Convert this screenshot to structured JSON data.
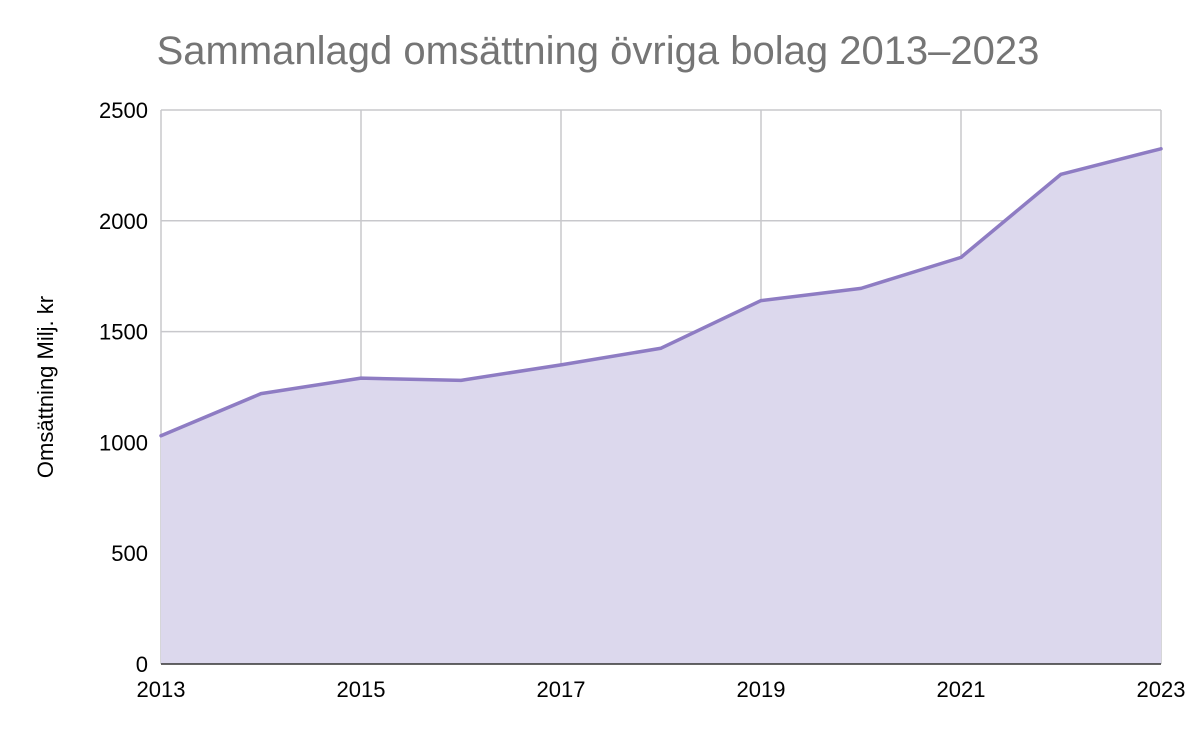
{
  "colors": {
    "line": "#8e7cc3",
    "area_fill": "#dcd8ed",
    "grid": "#c8c8cc",
    "baseline": "#333333",
    "title": "#757575"
  },
  "chart_data": {
    "type": "area",
    "title": "Sammanlagd omsättning övriga bolag 2013–2023",
    "xlabel": "",
    "ylabel": "Omsättning Milj. kr",
    "x": [
      2013,
      2014,
      2015,
      2016,
      2017,
      2018,
      2019,
      2020,
      2021,
      2022,
      2023
    ],
    "series": [
      {
        "values": [
          1030,
          1220,
          1290,
          1280,
          1350,
          1425,
          1640,
          1695,
          1835,
          2210,
          2325
        ]
      }
    ],
    "xlim": [
      2013,
      2023
    ],
    "ylim": [
      0,
      2500
    ],
    "x_ticks": [
      2013,
      2015,
      2017,
      2019,
      2021,
      2023
    ],
    "y_ticks": [
      0,
      500,
      1000,
      1500,
      2000,
      2500
    ],
    "x_tick_labels": [
      "2013",
      "2015",
      "2017",
      "2019",
      "2021",
      "2023"
    ],
    "y_tick_labels": [
      "0",
      "500",
      "1000",
      "1500",
      "2000",
      "2500"
    ],
    "grid": true,
    "legend": "none"
  }
}
